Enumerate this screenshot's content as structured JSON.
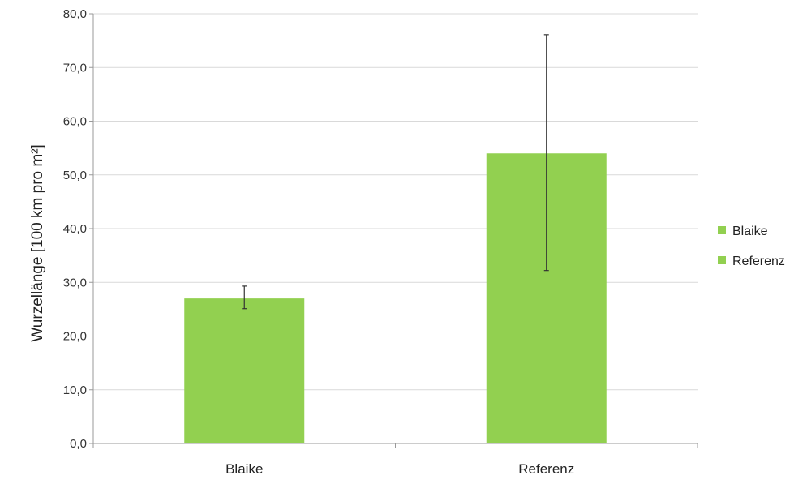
{
  "chart_data": {
    "type": "bar",
    "categories": [
      "Blaike",
      "Referenz"
    ],
    "series": [
      {
        "name": "Blaike",
        "values": [
          27.0,
          null
        ]
      },
      {
        "name": "Referenz",
        "values": [
          null,
          54.0
        ]
      }
    ],
    "error_bars": [
      {
        "category": "Blaike",
        "low": 25.1,
        "high": 29.3
      },
      {
        "category": "Referenz",
        "low": 32.2,
        "high": 76.1
      }
    ],
    "yticks": [
      "0,0",
      "10,0",
      "20,0",
      "30,0",
      "40,0",
      "50,0",
      "60,0",
      "70,0",
      "80,0"
    ],
    "ylabel": "Wurzellänge [100 km pro m²]",
    "xlabel": "",
    "ylim": [
      0,
      80
    ],
    "grid": true,
    "legend_position": "right",
    "colors": {
      "bar": "#92d050",
      "grid": "#d9d9d9",
      "axis": "#999999",
      "error_bar": "#333333"
    }
  }
}
